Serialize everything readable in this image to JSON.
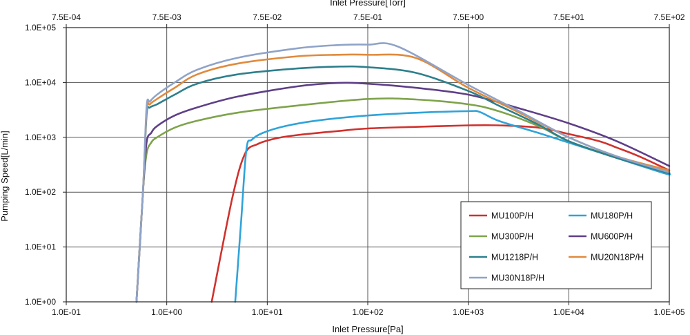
{
  "chart_data": {
    "type": "line",
    "x_scale": "log",
    "y_scale": "log",
    "xlabel": "Inlet Pressure[Pa]",
    "x2label": "Inlet Pressure[Torr]",
    "ylabel": "Pumping Speed[L/min]",
    "xlim": [
      0.1,
      100000
    ],
    "ylim": [
      1,
      100000
    ],
    "x_ticks": [
      0.1,
      1,
      10,
      100,
      1000,
      10000,
      100000
    ],
    "x_tick_labels": [
      "1.0E-01",
      "1.0E+00",
      "1.0E+01",
      "1.0E+02",
      "1.0E+03",
      "1.0E+04",
      "1.0E+05"
    ],
    "x2_ticks": [
      0.1,
      1,
      10,
      100,
      1000,
      10000,
      100000
    ],
    "x2_tick_labels": [
      "7.5E-04",
      "7.5E-03",
      "7.5E-02",
      "7.5E-01",
      "7.5E+00",
      "7.5E+01",
      "7.5E+02"
    ],
    "y_ticks": [
      1,
      10,
      100,
      1000,
      10000,
      100000
    ],
    "y_tick_labels": [
      "1.0E+00",
      "1.0E+01",
      "1.0E+02",
      "1.0E+03",
      "1.0E+04",
      "1.0E+05"
    ],
    "grid": true,
    "legend_position": "bottom-right",
    "series": [
      {
        "name": "MU100P/H",
        "color": "#d0312d",
        "x": [
          2.8,
          4.5,
          6.0,
          8.0,
          12,
          20,
          50,
          100,
          300,
          1000,
          2000,
          5000,
          10000,
          20000,
          30000,
          50000,
          100000
        ],
        "y": [
          1,
          80,
          500,
          750,
          950,
          1100,
          1300,
          1450,
          1550,
          1650,
          1650,
          1500,
          1150,
          850,
          650,
          450,
          250
        ]
      },
      {
        "name": "MU180P/H",
        "color": "#2fa3d9",
        "x": [
          4.8,
          5.5,
          6.2,
          7,
          9,
          15,
          30,
          100,
          300,
          1000,
          1300,
          2000,
          5000,
          10000,
          30000,
          90000,
          100000
        ],
        "y": [
          1,
          30,
          600,
          900,
          1200,
          1600,
          2000,
          2500,
          2800,
          3000,
          2900,
          2000,
          1200,
          800,
          420,
          220,
          220
        ]
      },
      {
        "name": "MU300P/H",
        "color": "#7ea34b",
        "x": [
          0.5,
          0.58,
          0.63,
          0.7,
          0.8,
          1.2,
          2,
          5,
          20,
          100,
          300,
          1000,
          2000,
          5000,
          10000,
          30000,
          100000
        ],
        "y": [
          1,
          100,
          500,
          800,
          1000,
          1500,
          2000,
          2800,
          3800,
          5000,
          4900,
          4000,
          3000,
          1600,
          850,
          430,
          230
        ]
      },
      {
        "name": "MU600P/H",
        "color": "#5e3f87",
        "x": [
          0.5,
          0.58,
          0.63,
          0.7,
          0.8,
          1.2,
          2,
          5,
          20,
          50,
          100,
          300,
          1000,
          3000,
          10000,
          30000,
          100000
        ],
        "y": [
          1,
          100,
          800,
          1200,
          1600,
          2500,
          3500,
          5500,
          8500,
          9800,
          9500,
          8000,
          6000,
          3500,
          1800,
          850,
          300
        ]
      },
      {
        "name": "MU1218P/H",
        "color": "#2d7f8c",
        "x": [
          0.5,
          0.58,
          0.63,
          0.68,
          0.8,
          1.2,
          2,
          5,
          20,
          50,
          100,
          300,
          1000,
          2000,
          5000,
          10000,
          30000,
          100000
        ],
        "y": [
          1,
          100,
          2500,
          3500,
          4000,
          6000,
          9500,
          14000,
          18000,
          19500,
          19000,
          15000,
          7000,
          3800,
          1700,
          850,
          420,
          220
        ]
      },
      {
        "name": "MU20N18P/H",
        "color": "#e08a3c",
        "x": [
          0.5,
          0.58,
          0.63,
          0.68,
          0.8,
          1.2,
          2,
          5,
          20,
          50,
          100,
          300,
          1000,
          3000,
          10000,
          30000,
          100000
        ],
        "y": [
          1,
          100,
          3000,
          4000,
          5000,
          8000,
          14000,
          22000,
          30000,
          32000,
          32000,
          28000,
          8000,
          3000,
          1000,
          450,
          250
        ]
      },
      {
        "name": "MU30N18P/H",
        "color": "#8fa3c8",
        "x": [
          0.5,
          0.58,
          0.63,
          0.68,
          0.8,
          1.2,
          2,
          5,
          20,
          50,
          100,
          200,
          1000,
          3000,
          10000,
          30000,
          100000
        ],
        "y": [
          1,
          100,
          3500,
          4500,
          6000,
          10000,
          17000,
          28000,
          42000,
          48000,
          49000,
          45000,
          9000,
          3200,
          1000,
          450,
          230
        ]
      }
    ]
  }
}
